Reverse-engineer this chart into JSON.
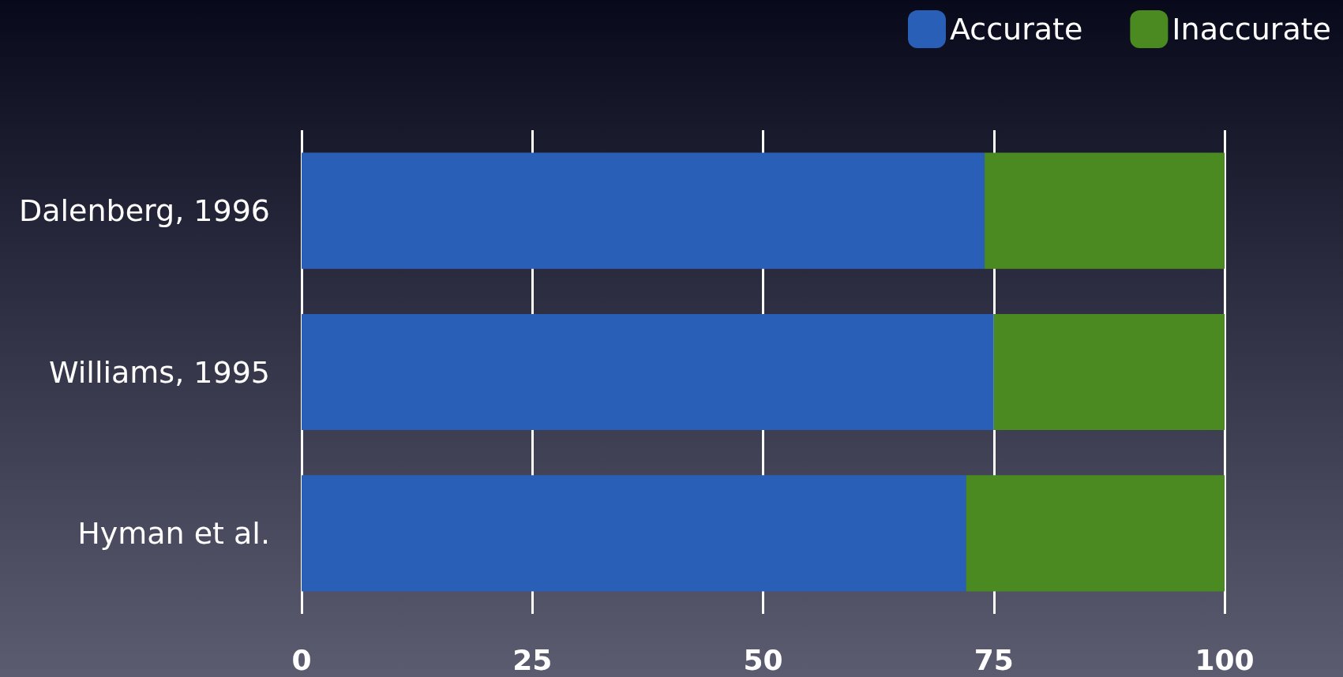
{
  "chart_data": {
    "type": "bar",
    "orientation": "horizontal",
    "stacked": true,
    "categories": [
      "Dalenberg, 1996",
      "Williams, 1995",
      "Hyman et al."
    ],
    "series": [
      {
        "name": "Accurate",
        "color": "#2a5fb8",
        "values": [
          74,
          75,
          72
        ]
      },
      {
        "name": "Inaccurate",
        "color": "#4a8a20",
        "values": [
          26,
          25,
          28
        ]
      }
    ],
    "xlim": [
      0,
      100
    ],
    "xticks": [
      0,
      25,
      50,
      75,
      100
    ],
    "grid": "x",
    "legend": "top right"
  }
}
